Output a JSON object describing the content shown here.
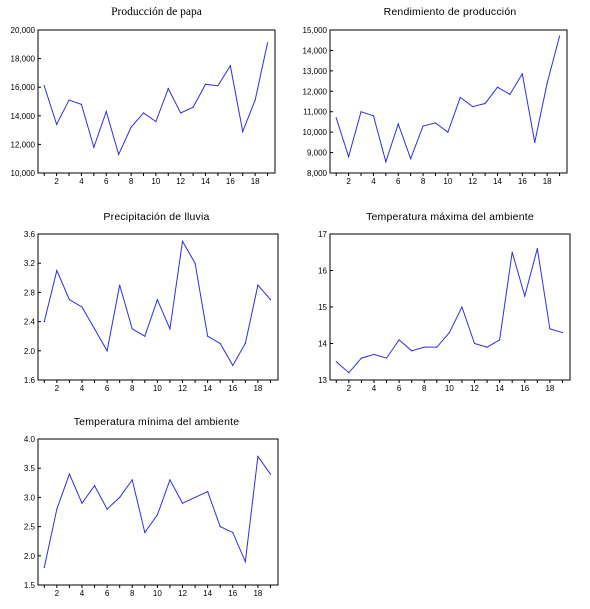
{
  "chart_data": [
    {
      "type": "line",
      "title": "Producción de papa",
      "x": [
        1,
        2,
        3,
        4,
        5,
        6,
        7,
        8,
        9,
        10,
        11,
        12,
        13,
        14,
        15,
        16,
        17,
        18,
        19
      ],
      "x_tick_labels": [
        "2",
        "4",
        "6",
        "8",
        "10",
        "12",
        "14",
        "16",
        "18"
      ],
      "values": [
        16100,
        13400,
        15100,
        14800,
        11800,
        14300,
        11300,
        13200,
        14200,
        13600,
        15900,
        14200,
        14600,
        16200,
        16100,
        17500,
        12900,
        15100,
        19100
      ],
      "ylim": [
        10000,
        20000
      ],
      "y_tick_labels": [
        "10,000",
        "12,000",
        "14,000",
        "16,000",
        "18,000",
        "20,000"
      ],
      "line_color": "#2e2ee6"
    },
    {
      "type": "line",
      "title": "Rendimiento de producción",
      "x": [
        1,
        2,
        3,
        4,
        5,
        6,
        7,
        8,
        9,
        10,
        11,
        12,
        13,
        14,
        15,
        16,
        17,
        18,
        19
      ],
      "x_tick_labels": [
        "2",
        "4",
        "6",
        "8",
        "10",
        "12",
        "14",
        "16",
        "18"
      ],
      "values": [
        10700,
        8800,
        11000,
        10800,
        8550,
        10400,
        8700,
        10300,
        10450,
        10000,
        11700,
        11250,
        11400,
        12200,
        11850,
        12850,
        9500,
        12400,
        14700
      ],
      "ylim": [
        8000,
        15000
      ],
      "y_tick_labels": [
        "8,000",
        "9,000",
        "10,000",
        "11,000",
        "12,000",
        "13,000",
        "14,000",
        "15,000"
      ],
      "line_color": "#2e2ee6"
    },
    {
      "type": "line",
      "title": "Precipitación de lluvia",
      "x": [
        1,
        2,
        3,
        4,
        5,
        6,
        7,
        8,
        9,
        10,
        11,
        12,
        13,
        14,
        15,
        16,
        17,
        18,
        19
      ],
      "x_tick_labels": [
        "2",
        "4",
        "6",
        "8",
        "10",
        "12",
        "14",
        "16",
        "18"
      ],
      "values": [
        2.4,
        3.1,
        2.7,
        2.6,
        2.3,
        2.0,
        2.9,
        2.3,
        2.2,
        2.7,
        2.3,
        3.5,
        3.2,
        2.2,
        2.1,
        1.8,
        2.1,
        2.9,
        2.7
      ],
      "ylim": [
        1.6,
        3.6
      ],
      "y_tick_labels": [
        "1.6",
        "2.0",
        "2.4",
        "2.8",
        "3.2",
        "3.6"
      ],
      "line_color": "#2e2ee6"
    },
    {
      "type": "line",
      "title": "Temperatura máxima del ambiente",
      "x": [
        1,
        2,
        3,
        4,
        5,
        6,
        7,
        8,
        9,
        10,
        11,
        12,
        13,
        14,
        15,
        16,
        17,
        18,
        19
      ],
      "x_tick_labels": [
        "2",
        "4",
        "6",
        "8",
        "10",
        "12",
        "14",
        "16",
        "18"
      ],
      "values": [
        13.5,
        13.2,
        13.6,
        13.7,
        13.6,
        14.1,
        13.8,
        13.9,
        13.9,
        14.3,
        15.0,
        14.0,
        13.9,
        14.1,
        16.5,
        15.3,
        16.6,
        14.4,
        14.3
      ],
      "ylim": [
        13,
        17
      ],
      "y_tick_labels": [
        "13",
        "14",
        "15",
        "16",
        "17"
      ],
      "line_color": "#2e2ee6"
    },
    {
      "type": "line",
      "title": "Temperatura mínima del ambiente",
      "x": [
        1,
        2,
        3,
        4,
        5,
        6,
        7,
        8,
        9,
        10,
        11,
        12,
        13,
        14,
        15,
        16,
        17,
        18,
        19
      ],
      "x_tick_labels": [
        "2",
        "4",
        "6",
        "8",
        "10",
        "12",
        "14",
        "16",
        "18"
      ],
      "values": [
        1.8,
        2.8,
        3.4,
        2.9,
        3.2,
        2.8,
        3.0,
        3.3,
        2.4,
        2.7,
        3.3,
        2.9,
        3.0,
        3.1,
        2.5,
        2.4,
        1.9,
        3.7,
        3.4
      ],
      "ylim": [
        1.5,
        4.0
      ],
      "y_tick_labels": [
        "1.5",
        "2.0",
        "2.5",
        "3.0",
        "3.5",
        "4.0"
      ],
      "line_color": "#2e2ee6"
    }
  ]
}
